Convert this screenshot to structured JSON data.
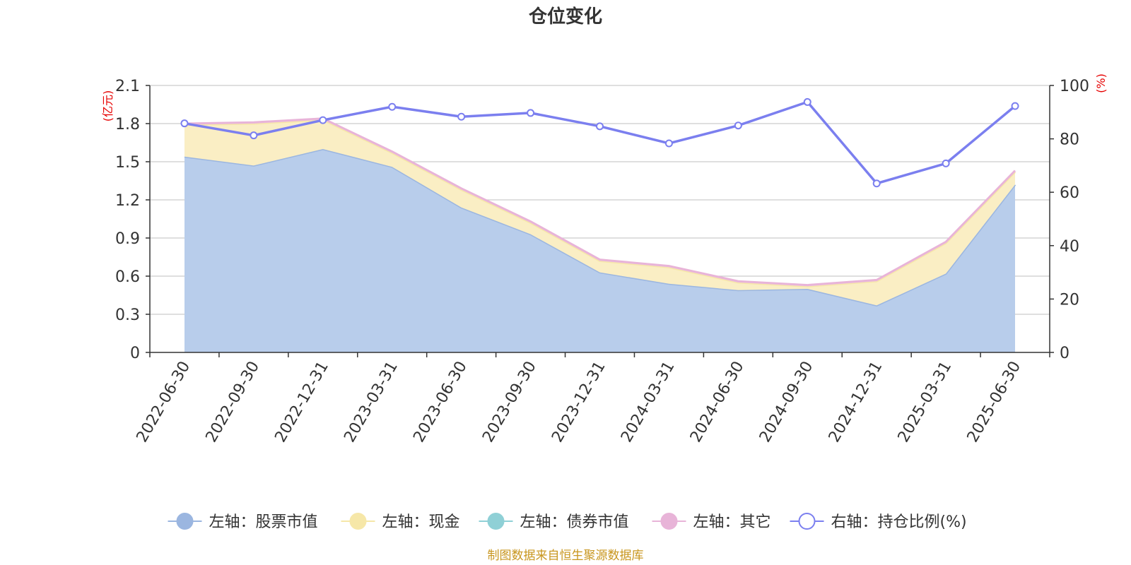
{
  "chart_data": {
    "type": "area",
    "title": "仓位变化",
    "categories": [
      "2022-06-30",
      "2022-09-30",
      "2022-12-31",
      "2023-03-31",
      "2023-06-30",
      "2023-09-30",
      "2023-12-31",
      "2024-03-31",
      "2024-06-30",
      "2024-09-30",
      "2024-12-31",
      "2025-03-31",
      "2025-06-30"
    ],
    "left_axis": {
      "unit": "(亿元)",
      "ylim": [
        0,
        2.1
      ],
      "ticks": [
        "0",
        "0.3",
        "0.6",
        "0.9",
        "1.2",
        "1.5",
        "1.8",
        "2.1"
      ]
    },
    "right_axis": {
      "unit": "(%)",
      "ylim": [
        0,
        100
      ],
      "ticks": [
        "0",
        "20",
        "40",
        "60",
        "80",
        "100"
      ]
    },
    "grid": true,
    "legend_position": "bottom",
    "series": [
      {
        "name": "左轴：股票市值",
        "axis": "left",
        "stack": true,
        "color": "#9bb6e0",
        "fill": "#b8cdeb",
        "values": [
          1.54,
          1.47,
          1.6,
          1.46,
          1.14,
          0.93,
          0.63,
          0.54,
          0.49,
          0.5,
          0.37,
          0.62,
          1.32
        ]
      },
      {
        "name": "左轴：现金",
        "axis": "left",
        "stack": true,
        "color": "#f6e7a8",
        "fill": "#faeec4",
        "values": [
          0.25,
          0.33,
          0.23,
          0.11,
          0.14,
          0.09,
          0.09,
          0.13,
          0.06,
          0.02,
          0.19,
          0.24,
          0.1
        ]
      },
      {
        "name": "左轴：债券市值",
        "axis": "left",
        "stack": true,
        "color": "#8fd0d6",
        "fill": "#a8dde0",
        "values": [
          0,
          0,
          0,
          0,
          0,
          0,
          0,
          0,
          0,
          0,
          0,
          0,
          0
        ]
      },
      {
        "name": "左轴：其它",
        "axis": "left",
        "stack": true,
        "color": "#e8b4d8",
        "fill": "#f0c8e2",
        "values": [
          0.01,
          0.01,
          0.01,
          0.01,
          0.01,
          0.01,
          0.01,
          0.01,
          0.01,
          0.01,
          0.01,
          0.01,
          0.01
        ]
      },
      {
        "name": "右轴：持仓比例(%)",
        "axis": "right",
        "stack": false,
        "color": "#7b7fef",
        "fill": "none",
        "values": [
          85.8,
          81.3,
          87.0,
          92.0,
          88.3,
          89.7,
          84.7,
          78.3,
          85.0,
          93.8,
          63.3,
          70.8,
          92.3
        ]
      }
    ]
  },
  "source_note": "制图数据来自恒生聚源数据库"
}
